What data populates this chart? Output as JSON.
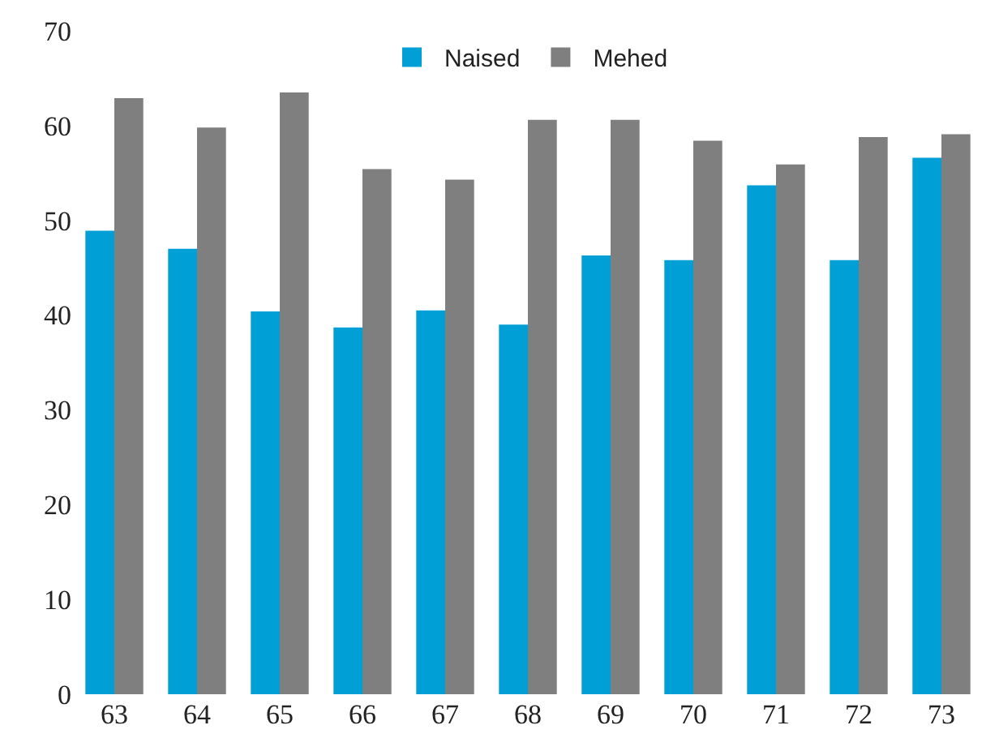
{
  "chart_data": {
    "type": "bar",
    "categories": [
      "63",
      "64",
      "65",
      "66",
      "67",
      "68",
      "69",
      "70",
      "71",
      "72",
      "73"
    ],
    "series": [
      {
        "name": "Naised",
        "color": "#00a0d6",
        "values": [
          48.9,
          47.0,
          40.4,
          38.7,
          40.5,
          39.0,
          46.3,
          45.8,
          53.7,
          45.8,
          56.6
        ]
      },
      {
        "name": "Mehed",
        "color": "#7f7f7f",
        "values": [
          62.9,
          59.8,
          63.5,
          55.4,
          54.3,
          60.6,
          60.6,
          58.4,
          55.9,
          58.8,
          59.1
        ]
      }
    ],
    "ylim": [
      0,
      70
    ],
    "yticks": [
      0,
      10,
      20,
      30,
      40,
      50,
      60,
      70
    ],
    "legend": "top"
  }
}
